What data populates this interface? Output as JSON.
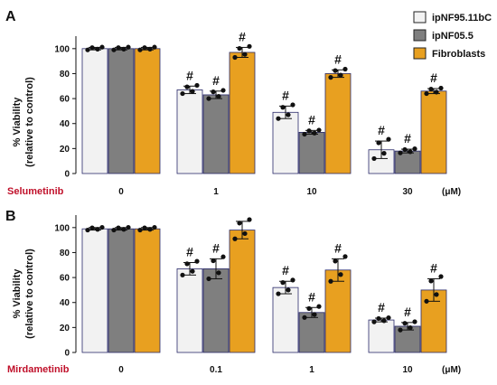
{
  "legend": [
    {
      "name": "ipNF95.11bC",
      "color": "#f2f2f2"
    },
    {
      "name": "ipNF05.5",
      "color": "#7f7f7f"
    },
    {
      "name": "Fibroblasts",
      "color": "#e8a020"
    }
  ],
  "chart_data": [
    {
      "panel": "A",
      "type": "bar",
      "ylabel_line1": "% Viability",
      "ylabel_line2": "(relative to control)",
      "ylim": [
        0,
        110
      ],
      "yticks": [
        "0",
        "20",
        "40",
        "60",
        "80",
        "100"
      ],
      "drug": "Selumetinib",
      "unit": "(μM)",
      "categories": [
        "0",
        "1",
        "10",
        "30"
      ],
      "series": [
        {
          "name": "ipNF95.11bC",
          "values": [
            100,
            67,
            49,
            19
          ],
          "errors": [
            1,
            3,
            5,
            7
          ],
          "marks": [
            "",
            "#",
            "#",
            "#"
          ]
        },
        {
          "name": "ipNF05.5",
          "values": [
            100,
            63,
            33,
            18
          ],
          "errors": [
            1,
            3,
            1.5,
            1.5
          ],
          "marks": [
            "",
            "#",
            "#",
            "#"
          ]
        },
        {
          "name": "Fibroblasts",
          "values": [
            100,
            97,
            80,
            66
          ],
          "errors": [
            1,
            4,
            3,
            2
          ],
          "marks": [
            "",
            "#",
            "#",
            "#"
          ]
        }
      ]
    },
    {
      "panel": "B",
      "type": "bar",
      "ylabel_line1": "% Viability",
      "ylabel_line2": "(relative to control)",
      "ylim": [
        0,
        110
      ],
      "yticks": [
        "0",
        "20",
        "40",
        "60",
        "80",
        "100"
      ],
      "drug": "Mirdametinib",
      "unit": "(μM)",
      "categories": [
        "0",
        "0.1",
        "1",
        "10"
      ],
      "series": [
        {
          "name": "ipNF95.11bC",
          "values": [
            99,
            67,
            52,
            26
          ],
          "errors": [
            1,
            5,
            5,
            1.5
          ],
          "marks": [
            "",
            "#",
            "#",
            "#"
          ]
        },
        {
          "name": "ipNF05.5",
          "values": [
            99,
            67,
            32,
            21
          ],
          "errors": [
            1,
            8,
            4,
            3
          ],
          "marks": [
            "",
            "#",
            "#",
            "#"
          ]
        },
        {
          "name": "Fibroblasts",
          "values": [
            99,
            98,
            66,
            50
          ],
          "errors": [
            1,
            7,
            9,
            9
          ],
          "marks": [
            "",
            "",
            "#",
            "#"
          ]
        }
      ]
    }
  ]
}
